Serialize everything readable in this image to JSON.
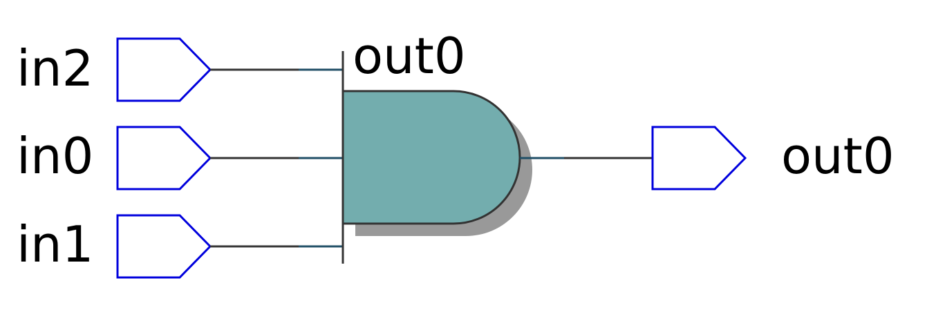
{
  "colors": {
    "port_stroke": "#0000dd",
    "wire": "#333333",
    "wire_stub": "#1f4e66",
    "gate_fill": "#73adae",
    "gate_stroke": "#333333",
    "gate_shadow": "#999999"
  },
  "inputs": [
    {
      "label": "in2"
    },
    {
      "label": "in0"
    },
    {
      "label": "in1"
    }
  ],
  "gate": {
    "type": "and",
    "output_label": "out0"
  },
  "output": {
    "label": "out0"
  }
}
